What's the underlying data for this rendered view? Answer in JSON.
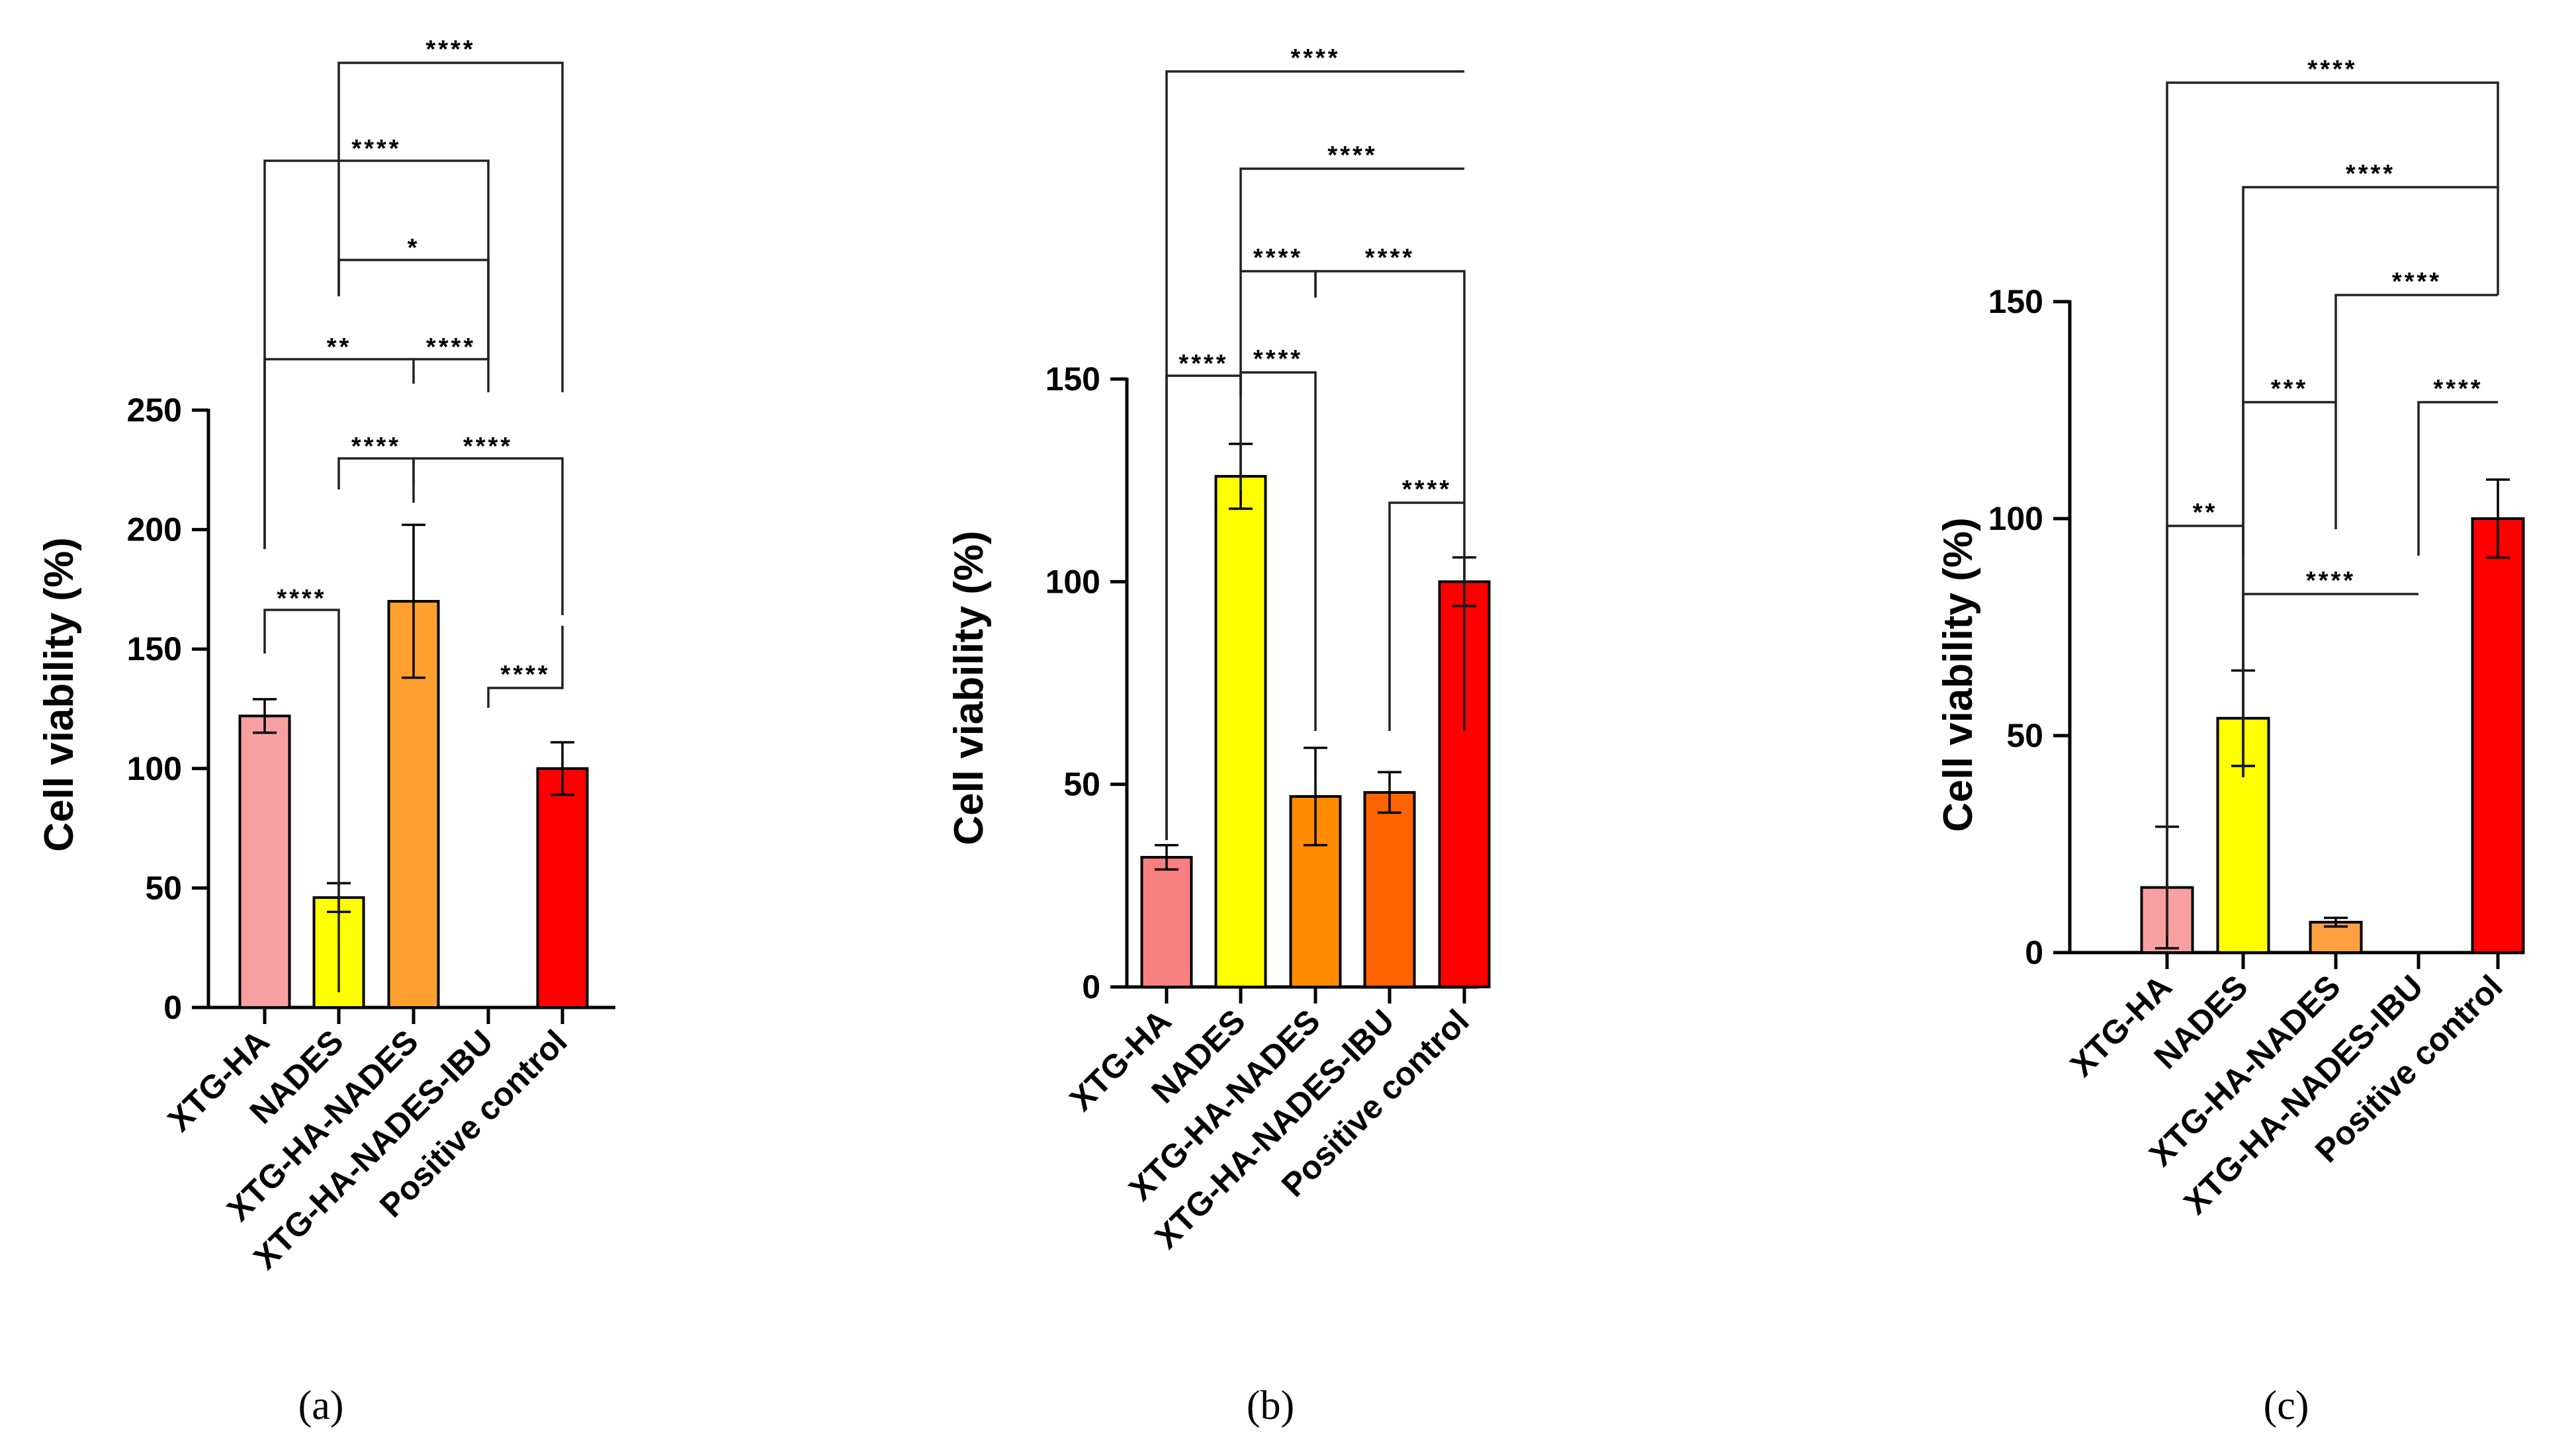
{
  "chart_data": [
    {
      "type": "bar",
      "panel_label": "(a)",
      "ylabel": "Cell viability (%)",
      "ylim": [
        0,
        250
      ],
      "yticks": [
        0,
        50,
        100,
        150,
        200,
        250
      ],
      "categories": [
        "XTG-HA",
        "NADES",
        "XTG-HA-NADES",
        "XTG-HA-NADES-IBU",
        "Positive control"
      ],
      "values": [
        122,
        46,
        170,
        0,
        100
      ],
      "errors": [
        7,
        6,
        32,
        0,
        11
      ],
      "colors": [
        "#f8a0a0",
        "#ffff00",
        "#ffa030",
        "#ff6a00",
        "#ff0000"
      ],
      "significance": [
        {
          "from": 0,
          "to": 1,
          "label": "****"
        },
        {
          "from": 1,
          "to": 2,
          "label": "****"
        },
        {
          "from": 2,
          "to": 4,
          "label": "****"
        },
        {
          "from": 3,
          "to": 4,
          "label": "****"
        },
        {
          "from": 0,
          "to": 2,
          "label": "**"
        },
        {
          "from": 2,
          "to": 3,
          "label": "****"
        },
        {
          "from": 1,
          "to": 3,
          "label": "*"
        },
        {
          "from": 0,
          "to": 3,
          "label": "****"
        },
        {
          "from": 1,
          "to": 4,
          "label": "****"
        }
      ]
    },
    {
      "type": "bar",
      "panel_label": "(b)",
      "ylabel": "Cell viability (%)",
      "ylim": [
        0,
        150
      ],
      "yticks": [
        0,
        50,
        100,
        150
      ],
      "categories": [
        "XTG-HA",
        "NADES",
        "XTG-HA-NADES",
        "XTG-HA-NADES-IBU",
        "Positive control"
      ],
      "values": [
        32,
        126,
        47,
        48,
        100
      ],
      "errors": [
        3,
        8,
        12,
        5,
        6
      ],
      "colors": [
        "#f88080",
        "#ffff00",
        "#ff8c00",
        "#ff6400",
        "#ff0000"
      ],
      "significance": [
        {
          "from": 0,
          "to": 1,
          "label": "****"
        },
        {
          "from": 3,
          "to": 4,
          "label": "****"
        },
        {
          "from": 1,
          "to": 2,
          "label": "****"
        },
        {
          "from": 1,
          "to": 2,
          "label": "****"
        },
        {
          "from": 2,
          "to": 4,
          "label": "****"
        },
        {
          "from": 1,
          "to": 4,
          "label": "****"
        },
        {
          "from": 0,
          "to": 4,
          "label": "****"
        }
      ]
    },
    {
      "type": "bar",
      "panel_label": "(c)",
      "ylabel": "Cell viability (%)",
      "ylim": [
        0,
        150
      ],
      "yticks": [
        0,
        50,
        100,
        150
      ],
      "categories": [
        "XTG-HA",
        "NADES",
        "XTG-HA-NADES",
        "XTG-HA-NADES-IBU",
        "Positive control"
      ],
      "values": [
        15,
        54,
        7,
        0,
        100
      ],
      "errors": [
        14,
        11,
        1,
        0,
        9
      ],
      "colors": [
        "#f8a0a0",
        "#ffff00",
        "#ffa040",
        "#ff6a00",
        "#ff0000"
      ],
      "significance": [
        {
          "from": 0,
          "to": 1,
          "label": "**"
        },
        {
          "from": 1,
          "to": 3,
          "label": "****"
        },
        {
          "from": 1,
          "to": 2,
          "label": "***"
        },
        {
          "from": 3,
          "to": 4,
          "label": "****"
        },
        {
          "from": 2,
          "to": 4,
          "label": "****"
        },
        {
          "from": 1,
          "to": 4,
          "label": "****"
        },
        {
          "from": 0,
          "to": 4,
          "label": "****"
        }
      ]
    }
  ]
}
